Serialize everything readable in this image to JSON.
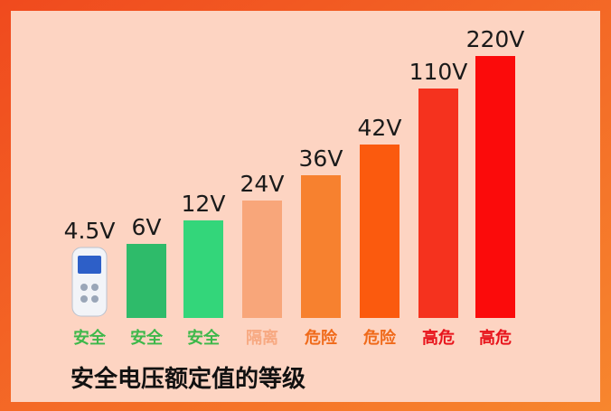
{
  "title": "安全电压额定值的等级",
  "items": [
    {
      "voltage": "4.5V",
      "level": "安全",
      "level_color": "#3db84a"
    },
    {
      "voltage": "6V",
      "level": "安全",
      "level_color": "#3db84a",
      "bar_color": "#2ebb6a"
    },
    {
      "voltage": "12V",
      "level": "安全",
      "level_color": "#3db84a",
      "bar_color": "#33d67a"
    },
    {
      "voltage": "24V",
      "level": "隔离",
      "level_color": "#f7a982",
      "bar_color": "#f8a67a"
    },
    {
      "voltage": "36V",
      "level": "危险",
      "level_color": "#f06a1a",
      "bar_color": "#f7812f"
    },
    {
      "voltage": "42V",
      "level": "危险",
      "level_color": "#f06a1a",
      "bar_color": "#fb5a0e"
    },
    {
      "voltage": "110V",
      "level": "高危",
      "level_color": "#e8141c",
      "bar_color": "#f5321e"
    },
    {
      "voltage": "220V",
      "level": "高危",
      "level_color": "#e8141c",
      "bar_color": "#fb0b0b"
    }
  ]
}
